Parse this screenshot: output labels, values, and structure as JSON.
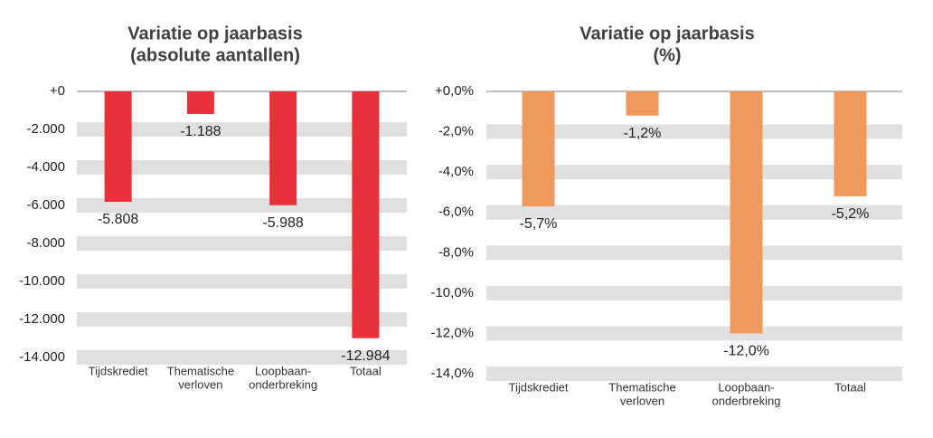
{
  "chart_data": [
    {
      "type": "bar",
      "title": [
        "Variatie op jaarbasis",
        "(absolute aantallen)"
      ],
      "categories": [
        [
          "Tijdskrediet"
        ],
        [
          "Thematische",
          "verloven"
        ],
        [
          "Loopbaan-",
          "onderbreking"
        ],
        [
          "Totaal"
        ]
      ],
      "values": [
        -5808,
        -1188,
        -5988,
        -12984
      ],
      "value_labels": [
        "-5.808",
        "-1.188",
        "-5.988",
        "-12.984"
      ],
      "color": "#e8303a",
      "ylim": [
        -14000,
        0
      ],
      "yticks": [
        {
          "value": 0,
          "label": "+0"
        },
        {
          "value": -2000,
          "label": "-2.000"
        },
        {
          "value": -4000,
          "label": "-4.000"
        },
        {
          "value": -6000,
          "label": "-6.000"
        },
        {
          "value": -8000,
          "label": "-8.000"
        },
        {
          "value": -10000,
          "label": "-10.000"
        },
        {
          "value": -12000,
          "label": "-12.000"
        },
        {
          "value": -14000,
          "label": "-14.000"
        }
      ],
      "grid": true
    },
    {
      "type": "bar",
      "title": [
        "Variatie op jaarbasis",
        "(%)"
      ],
      "categories": [
        [
          "Tijdskrediet"
        ],
        [
          "Thematische",
          "verloven"
        ],
        [
          "Loopbaan-",
          "onderbreking"
        ],
        [
          "Totaal"
        ]
      ],
      "values": [
        -5.7,
        -1.2,
        -12.0,
        -5.2
      ],
      "value_labels": [
        "-5,7%",
        "-1,2%",
        "-12,0%",
        "-5,2%"
      ],
      "color": "#f0995f",
      "ylim": [
        -14,
        0
      ],
      "yticks": [
        {
          "value": 0,
          "label": "+0,0%"
        },
        {
          "value": -2,
          "label": "-2,0%"
        },
        {
          "value": -4,
          "label": "-4,0%"
        },
        {
          "value": -6,
          "label": "-6,0%"
        },
        {
          "value": -8,
          "label": "-8,0%"
        },
        {
          "value": -10,
          "label": "-10,0%"
        },
        {
          "value": -12,
          "label": "-12,0%"
        },
        {
          "value": -14,
          "label": "-14,0%"
        }
      ],
      "grid": true
    }
  ]
}
